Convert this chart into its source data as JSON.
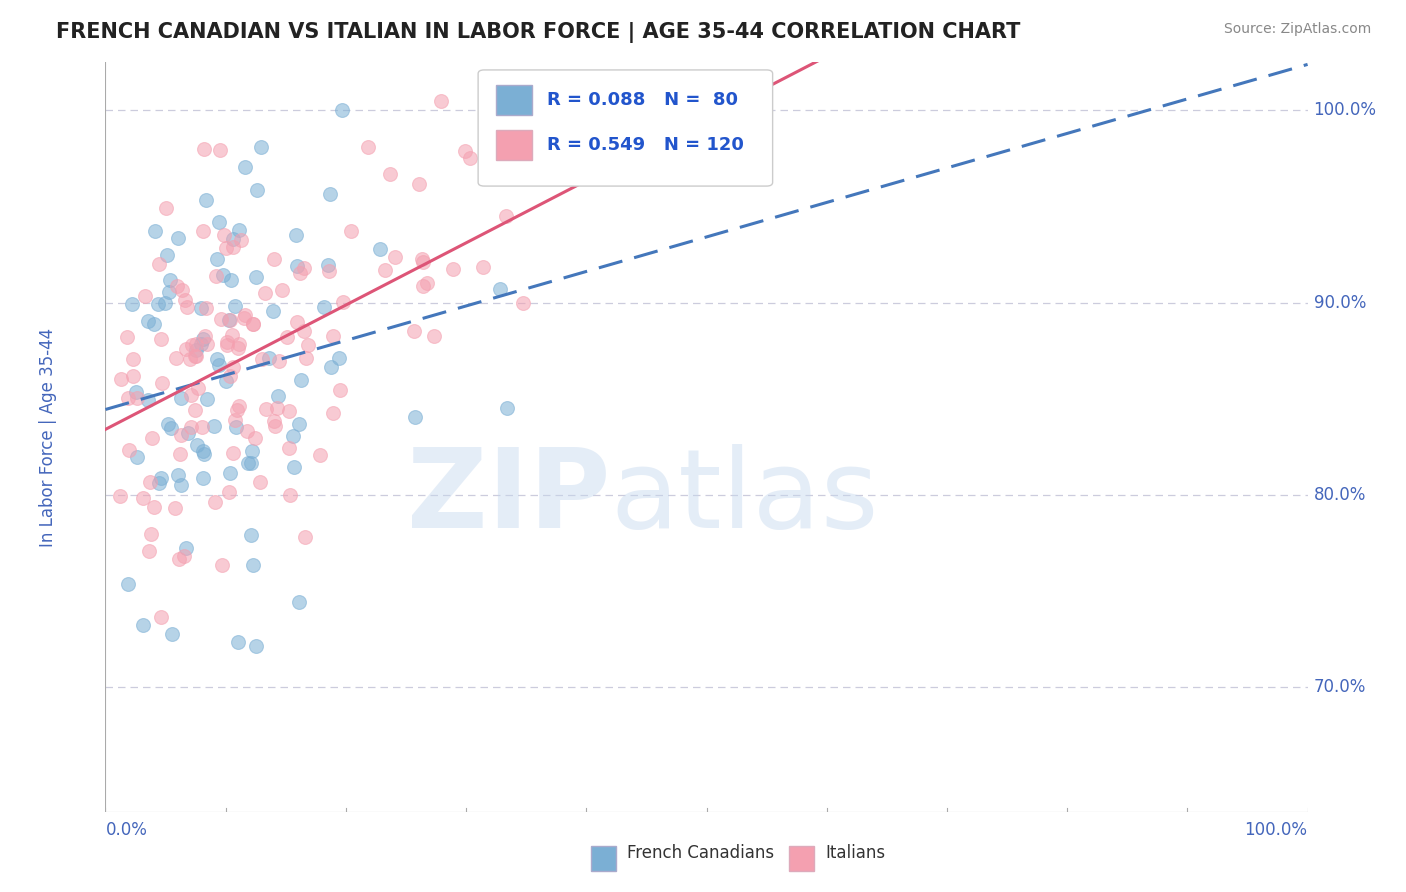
{
  "title": "FRENCH CANADIAN VS ITALIAN IN LABOR FORCE | AGE 35-44 CORRELATION CHART",
  "source": "Source: ZipAtlas.com",
  "ylabel": "In Labor Force | Age 35-44",
  "xlim": [
    0.0,
    1.0
  ],
  "ylim": [
    0.635,
    1.025
  ],
  "yticks": [
    0.7,
    0.8,
    0.9,
    1.0
  ],
  "ytick_labels": [
    "70.0%",
    "80.0%",
    "90.0%",
    "100.0%"
  ],
  "xtick_labels": [
    "0.0%",
    "100.0%"
  ],
  "blue_R": 0.088,
  "blue_N": 80,
  "pink_R": 0.549,
  "pink_N": 120,
  "blue_color": "#7BAFD4",
  "pink_color": "#F4A0B0",
  "blue_trend_color": "#4477BB",
  "pink_trend_color": "#DD5577",
  "grid_color": "#CCCCDD",
  "title_color": "#222222",
  "axis_color": "#4466BB",
  "legend_R_color": "#2255CC",
  "background_color": "#FFFFFF",
  "blue_seed": 42,
  "pink_seed": 77,
  "watermark_zip_color": "#C5D8EE",
  "watermark_atlas_color": "#C5D8EE"
}
